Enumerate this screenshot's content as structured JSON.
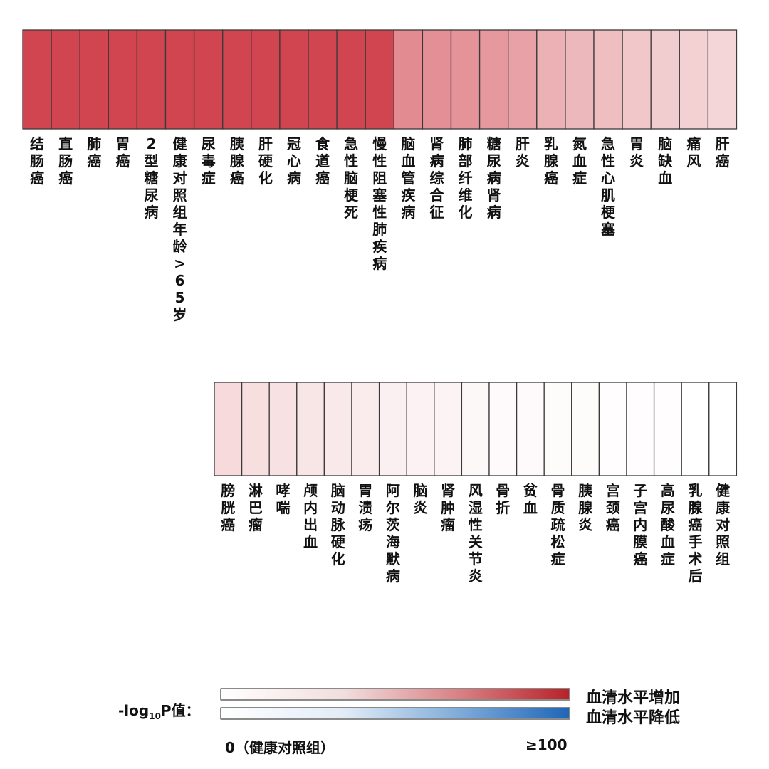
{
  "chart_data": {
    "type": "heatmap",
    "row1": [
      {
        "label": "结肠癌",
        "value": 100
      },
      {
        "label": "直肠癌",
        "value": 100
      },
      {
        "label": "肺癌",
        "value": 100
      },
      {
        "label": "胃癌",
        "value": 100
      },
      {
        "label": "2型糖尿病",
        "value": 100
      },
      {
        "label": "健康对照组年龄>65岁",
        "value": 100
      },
      {
        "label": "尿毒症",
        "value": 100
      },
      {
        "label": "胰腺癌",
        "value": 100
      },
      {
        "label": "肝硬化",
        "value": 100
      },
      {
        "label": "冠心病",
        "value": 100
      },
      {
        "label": "食道癌",
        "value": 100
      },
      {
        "label": "急性脑梗死",
        "value": 100
      },
      {
        "label": "慢性阻塞性肺疾病",
        "value": 100
      },
      {
        "label": "脑血管疾病",
        "value": 62
      },
      {
        "label": "肾病综合征",
        "value": 60
      },
      {
        "label": "肺部纤维化",
        "value": 58
      },
      {
        "label": "糖尿病肾病",
        "value": 55
      },
      {
        "label": "肝炎",
        "value": 50
      },
      {
        "label": "乳腺癌",
        "value": 42
      },
      {
        "label": "氮血症",
        "value": 38
      },
      {
        "label": "急性心肌梗塞",
        "value": 35
      },
      {
        "label": "胃炎",
        "value": 30
      },
      {
        "label": "脑缺血",
        "value": 27
      },
      {
        "label": "痛风",
        "value": 25
      },
      {
        "label": "肝癌",
        "value": 22
      }
    ],
    "row2": [
      {
        "label": "膀胱癌",
        "value": 20
      },
      {
        "label": "淋巴瘤",
        "value": 18
      },
      {
        "label": "哮喘",
        "value": 16
      },
      {
        "label": "颅内出血",
        "value": 14
      },
      {
        "label": "脑动脉硬化",
        "value": 12
      },
      {
        "label": "胃溃疡",
        "value": 10
      },
      {
        "label": "阿尔茨海默病",
        "value": 8
      },
      {
        "label": "脑炎",
        "value": 7
      },
      {
        "label": "肾肿瘤",
        "value": 6
      },
      {
        "label": "风湿性关节炎",
        "value": 4
      },
      {
        "label": "骨折",
        "value": 3
      },
      {
        "label": "贫血",
        "value": 3
      },
      {
        "label": "骨质疏松症",
        "value": 2
      },
      {
        "label": "胰腺炎",
        "value": 2
      },
      {
        "label": "宫颈癌",
        "value": 1
      },
      {
        "label": "子宫内膜癌",
        "value": 1
      },
      {
        "label": "高尿酸血症",
        "value": 1
      },
      {
        "label": "乳腺癌手术后",
        "value": 0
      },
      {
        "label": "健康对照组",
        "value": 0
      }
    ],
    "scale": [
      0,
      100
    ],
    "colors": {
      "high": "#d0454f",
      "low": "#ffffff",
      "decrease_high": "#1f66b8"
    }
  },
  "legend": {
    "title_prefix": "-log",
    "title_sub": "10",
    "title_suffix": "P值：",
    "increase_label": "血清水平增加",
    "decrease_label": "血清水平降低",
    "min_label": "0（健康对照组）",
    "max_label": "≥100"
  }
}
